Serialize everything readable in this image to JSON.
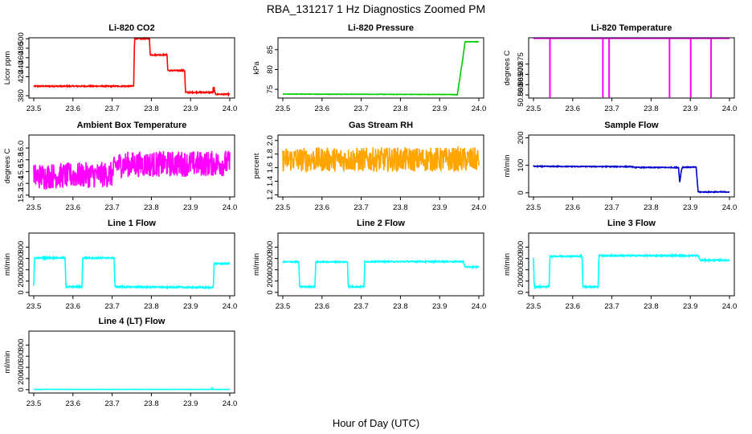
{
  "figure": {
    "title": "RBA_131217  1 Hz Diagnostics Zoomed PM",
    "xlabel": "Hour of Day (UTC)"
  },
  "chart_data": [
    {
      "type": "line",
      "title": "Li-820 CO2",
      "ylabel": "Licor ppm",
      "xlabel": "",
      "xlim": [
        23.5,
        24.0
      ],
      "ylim": [
        375,
        502
      ],
      "xticks": [
        "23.5",
        "23.6",
        "23.7",
        "23.8",
        "23.9",
        "24.0"
      ],
      "yticks": [
        "380",
        "420",
        "440",
        "460",
        "480",
        "500"
      ],
      "color": "#ff0000",
      "noise": 1.2,
      "x": [
        23.5,
        23.755,
        23.757,
        23.795,
        23.797,
        23.84,
        23.842,
        23.885,
        23.887,
        23.958,
        23.96,
        23.962,
        23.964,
        24.0
      ],
      "y": [
        400,
        400,
        500,
        500,
        466,
        466,
        433,
        433,
        387,
        387,
        398,
        386,
        383,
        383
      ],
      "spikes": [
        {
          "x": 23.958,
          "y": 398
        }
      ]
    },
    {
      "type": "line",
      "title": "Li-820 Pressure",
      "ylabel": "kPa",
      "xlabel": "",
      "xlim": [
        23.5,
        24.0
      ],
      "ylim": [
        72.8,
        88.0
      ],
      "xticks": [
        "23.5",
        "23.6",
        "23.7",
        "23.8",
        "23.9",
        "24.0"
      ],
      "yticks": [
        "75",
        "80",
        "85"
      ],
      "color": "#00cc00",
      "noise": 0.05,
      "x": [
        23.5,
        23.93,
        23.945,
        23.955,
        23.965,
        24.0
      ],
      "y": [
        73.8,
        73.7,
        73.6,
        80.0,
        87.0,
        87.0
      ]
    },
    {
      "type": "line",
      "title": "Li-820 Temperature",
      "ylabel": "degrees C",
      "xlabel": "",
      "xlim": [
        23.5,
        24.0
      ],
      "ylim": [
        50.8585,
        50.8878
      ],
      "xticks": [
        "23.5",
        "23.6",
        "23.7",
        "23.8",
        "23.9",
        "24.0"
      ],
      "yticks": [
        "50.860",
        "50.865",
        "50.870",
        "50.875"
      ],
      "color": "#ff00ff",
      "noise": 0,
      "x": [
        23.5,
        24.0
      ],
      "y": [
        50.8875,
        50.8875
      ],
      "spikes": [
        {
          "x": 23.542,
          "y": 50.8588
        },
        {
          "x": 23.677,
          "y": 50.8588
        },
        {
          "x": 23.693,
          "y": 50.8588
        },
        {
          "x": 23.847,
          "y": 50.8588
        },
        {
          "x": 23.901,
          "y": 50.8588
        },
        {
          "x": 23.953,
          "y": 50.8588
        }
      ]
    },
    {
      "type": "line",
      "title": "Ambient Box Temperature",
      "ylabel": "degrees C",
      "xlabel": "",
      "xlim": [
        23.5,
        24.0
      ],
      "ylim": [
        15.17,
        16.22
      ],
      "xticks": [
        "23.5",
        "23.6",
        "23.7",
        "23.8",
        "23.9",
        "24.0"
      ],
      "yticks": [
        "15.2",
        "15.4",
        "15.6",
        "15.8",
        "16.0"
      ],
      "color": "#ff00ff",
      "noise": 0.22,
      "x": [
        23.5,
        23.7,
        23.71,
        24.0
      ],
      "y": [
        15.52,
        15.55,
        15.72,
        15.74
      ]
    },
    {
      "type": "line",
      "title": "Gas Stream RH",
      "ylabel": "percent",
      "xlabel": "",
      "xlim": [
        23.5,
        24.0
      ],
      "ylim": [
        1.17,
        2.08
      ],
      "xticks": [
        "23.5",
        "23.6",
        "23.7",
        "23.8",
        "23.9",
        "24.0"
      ],
      "yticks": [
        "1.2",
        "1.4",
        "1.6",
        "1.8",
        "2.0"
      ],
      "color": "#ffa500",
      "noise": 0.18,
      "x": [
        23.5,
        24.0
      ],
      "y": [
        1.72,
        1.72
      ]
    },
    {
      "type": "line",
      "title": "Sample Flow",
      "ylabel": "ml/min",
      "xlabel": "",
      "xlim": [
        23.5,
        24.0
      ],
      "ylim": [
        -15,
        210
      ],
      "xticks": [
        "23.5",
        "23.6",
        "23.7",
        "23.8",
        "23.9",
        "24.0"
      ],
      "yticks": [
        "0",
        "100",
        "200"
      ],
      "color": "#0000cc",
      "noise": 1.5,
      "x": [
        23.5,
        23.75,
        23.76,
        23.87,
        23.873,
        23.877,
        23.88,
        23.915,
        23.92,
        24.0
      ],
      "y": [
        96,
        95,
        92,
        92,
        35,
        80,
        93,
        93,
        3,
        3
      ]
    },
    {
      "type": "line",
      "title": "Line 1 Flow",
      "ylabel": "ml/min",
      "xlabel": "",
      "xlim": [
        23.5,
        24.0
      ],
      "ylim": [
        -60,
        1050
      ],
      "xticks": [
        "23.5",
        "23.6",
        "23.7",
        "23.8",
        "23.9",
        "24.0"
      ],
      "yticks": [
        "0",
        "200",
        "400",
        "600",
        "800"
      ],
      "color": "#00ffff",
      "noise": 12,
      "x": [
        23.5,
        23.502,
        23.58,
        23.582,
        23.623,
        23.625,
        23.705,
        23.707,
        23.958,
        23.96,
        24.0
      ],
      "y": [
        110,
        610,
        610,
        100,
        100,
        610,
        610,
        100,
        85,
        510,
        510
      ]
    },
    {
      "type": "line",
      "title": "Line 2 Flow",
      "ylabel": "ml/min",
      "xlabel": "",
      "xlim": [
        23.5,
        24.0
      ],
      "ylim": [
        -60,
        1050
      ],
      "xticks": [
        "23.5",
        "23.6",
        "23.7",
        "23.8",
        "23.9",
        "24.0"
      ],
      "yticks": [
        "0",
        "200",
        "400",
        "600",
        "800"
      ],
      "color": "#00ffff",
      "noise": 10,
      "x": [
        23.5,
        23.541,
        23.543,
        23.582,
        23.584,
        23.665,
        23.667,
        23.707,
        23.709,
        23.96,
        23.965,
        24.0
      ],
      "y": [
        540,
        540,
        100,
        100,
        540,
        540,
        100,
        100,
        545,
        545,
        450,
        450
      ]
    },
    {
      "type": "line",
      "title": "Line 3 Flow",
      "ylabel": "ml/min",
      "xlabel": "",
      "xlim": [
        23.5,
        24.0
      ],
      "ylim": [
        -60,
        1050
      ],
      "xticks": [
        "23.5",
        "23.6",
        "23.7",
        "23.8",
        "23.9",
        "24.0"
      ],
      "yticks": [
        "0",
        "200",
        "400",
        "600",
        "800"
      ],
      "color": "#00ffff",
      "noise": 12,
      "x": [
        23.5,
        23.502,
        23.54,
        23.542,
        23.624,
        23.626,
        23.665,
        23.667,
        23.92,
        23.925,
        24.0
      ],
      "y": [
        610,
        100,
        100,
        640,
        640,
        100,
        100,
        650,
        650,
        570,
        570
      ]
    },
    {
      "type": "line",
      "title": "Line 4 (LT) Flow",
      "ylabel": "ml/min",
      "xlabel": "",
      "xlim": [
        23.5,
        24.0
      ],
      "ylim": [
        -60,
        1050
      ],
      "xticks": [
        "23.5",
        "23.6",
        "23.7",
        "23.8",
        "23.9",
        "24.0"
      ],
      "yticks": [
        "0",
        "200",
        "400",
        "600",
        "800"
      ],
      "color": "#00ffff",
      "noise": 2,
      "x": [
        23.5,
        24.0
      ],
      "y": [
        5,
        5
      ],
      "spikes": [
        {
          "x": 23.955,
          "y": 45
        }
      ]
    }
  ]
}
